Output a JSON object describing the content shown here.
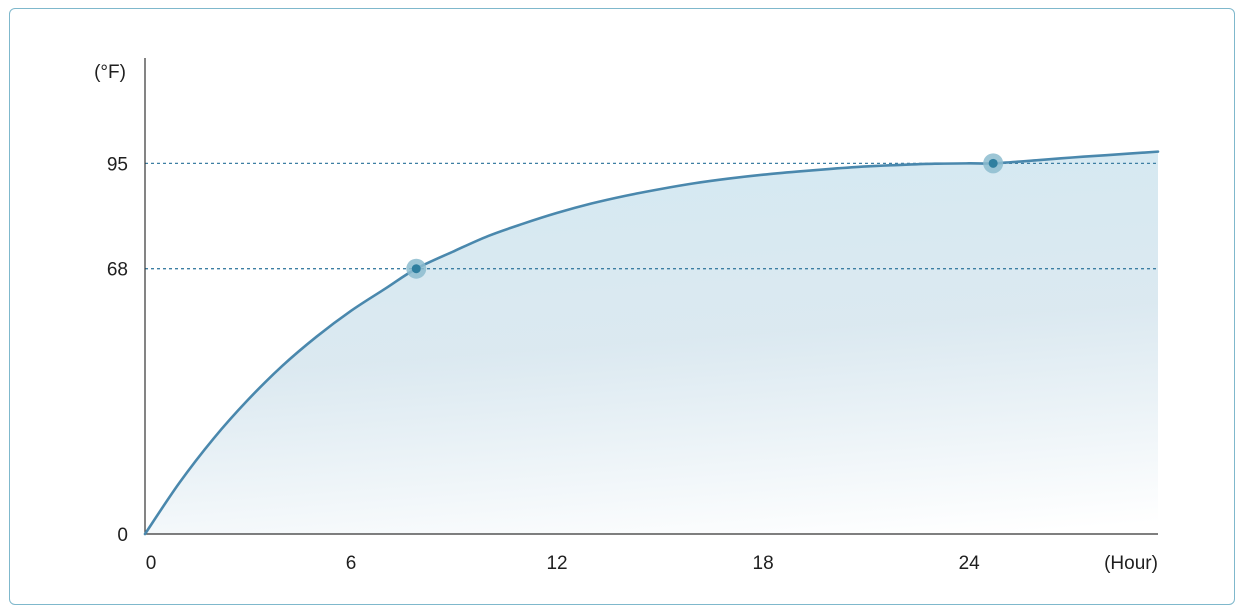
{
  "chart_data": {
    "type": "area",
    "ylabel": "(°F)",
    "xlabel": "(Hour)",
    "xlim": [
      0,
      29.5
    ],
    "ylim": [
      0,
      122
    ],
    "x_ticks": [
      "0",
      "6",
      "12",
      "18",
      "24"
    ],
    "y_ticks": [
      "0",
      "68",
      "95"
    ],
    "x_tick_values": [
      0,
      6,
      12,
      18,
      24
    ],
    "y_tick_values": [
      0,
      68,
      95
    ],
    "reference_lines_y": [
      68,
      95
    ],
    "series": [
      {
        "x": [
          0,
          1,
          2,
          3,
          4,
          5,
          6,
          7,
          7.9,
          9,
          10,
          11,
          12,
          13,
          14,
          15,
          16,
          17,
          18,
          19,
          20,
          21,
          22,
          23,
          24,
          24.7,
          26,
          27,
          28,
          29.5
        ],
        "y": [
          0,
          13.1,
          24.5,
          34.4,
          43.1,
          50.6,
          57.2,
          62.9,
          68.0,
          72.5,
          76.4,
          79.5,
          82.3,
          84.7,
          86.7,
          88.4,
          89.9,
          91.1,
          92.1,
          92.9,
          93.6,
          94.2,
          94.6,
          94.9,
          95.0,
          95.0,
          95.8,
          96.5,
          97.1,
          98.0
        ]
      }
    ],
    "highlighted_points": [
      {
        "x": 7.9,
        "y": 68
      },
      {
        "x": 24.7,
        "y": 95
      }
    ],
    "grid": false,
    "colors": {
      "line": "#4a88ad",
      "fill": "#cfe4ee",
      "marker": "#2f7f9f",
      "marker_halo": "#8cbccf",
      "reference": "#3d7fa3",
      "axis": "#333333",
      "frame": "#7fb8cc"
    }
  }
}
